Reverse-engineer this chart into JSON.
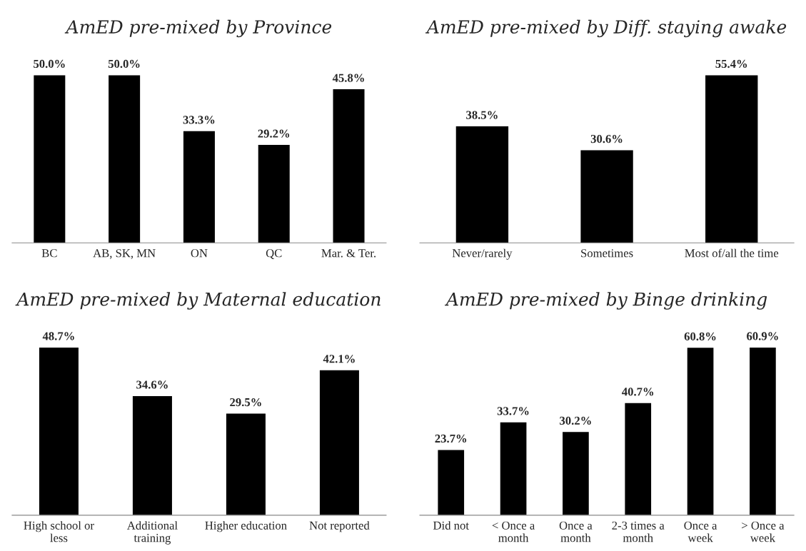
{
  "chart_data": [
    {
      "type": "bar",
      "title": "AmED pre-mixed by Province",
      "categories": [
        "BC",
        "AB, SK, MN",
        "ON",
        "QC",
        "Mar. & Ter."
      ],
      "values": [
        50.0,
        50.0,
        33.3,
        29.2,
        45.8
      ],
      "value_labels": [
        "50.0%",
        "50.0%",
        "33.3%",
        "29.2%",
        "45.8%"
      ],
      "color": "#000000"
    },
    {
      "type": "bar",
      "title": "AmED pre-mixed by Diff. staying awake",
      "categories": [
        "Never/rarely",
        "Sometimes",
        "Most of/all the time"
      ],
      "values": [
        38.5,
        30.6,
        55.4
      ],
      "value_labels": [
        "38.5%",
        "30.6%",
        "55.4%"
      ],
      "color": "#000000"
    },
    {
      "type": "bar",
      "title": "AmED pre-mixed by Maternal education",
      "categories": [
        "High school or\nless",
        "Additional\ntraining",
        "Higher education",
        "Not reported"
      ],
      "values": [
        48.7,
        34.6,
        29.5,
        42.1
      ],
      "value_labels": [
        "48.7%",
        "34.6%",
        "29.5%",
        "42.1%"
      ],
      "color": "#000000"
    },
    {
      "type": "bar",
      "title": "AmED pre-mixed by Binge drinking",
      "categories": [
        "Did not",
        "< Once a\nmonth",
        "Once a\nmonth",
        "2-3 times a\nmonth",
        "Once a\nweek",
        "> Once a\nweek"
      ],
      "values": [
        23.7,
        33.7,
        30.2,
        40.7,
        60.8,
        60.9
      ],
      "value_labels": [
        "23.7%",
        "33.7%",
        "30.2%",
        "40.7%",
        "60.8%",
        "60.9%"
      ],
      "color": "#000000"
    }
  ]
}
